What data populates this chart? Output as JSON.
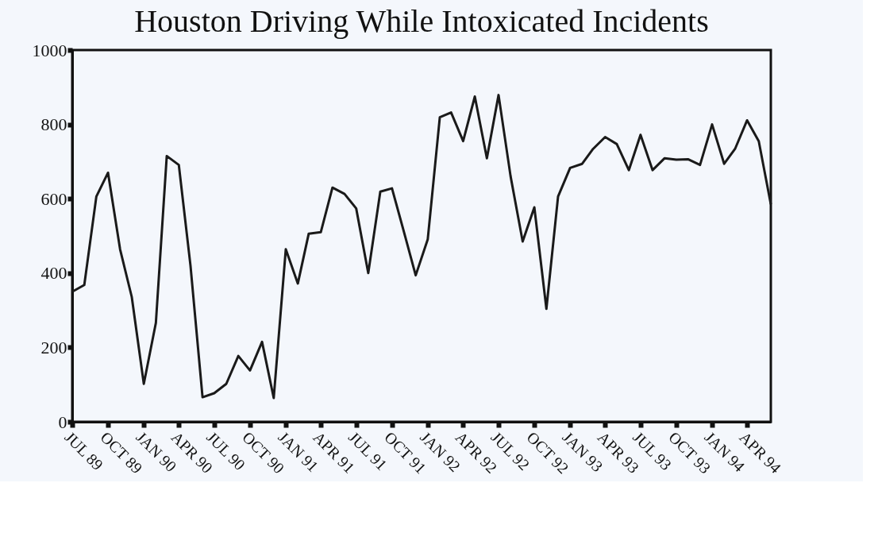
{
  "chart_data": {
    "type": "line",
    "title": "Houston Driving While Intoxicated Incidents",
    "x": [
      "1989-07",
      "1989-08",
      "1989-09",
      "1989-10",
      "1989-11",
      "1989-12",
      "1990-01",
      "1990-02",
      "1990-03",
      "1990-04",
      "1990-05",
      "1990-06",
      "1990-07",
      "1990-08",
      "1990-09",
      "1990-10",
      "1990-11",
      "1990-12",
      "1991-01",
      "1991-02",
      "1991-03",
      "1991-04",
      "1991-05",
      "1991-06",
      "1991-07",
      "1991-08",
      "1991-09",
      "1991-10",
      "1991-11",
      "1991-12",
      "1992-01",
      "1992-02",
      "1992-03",
      "1992-04",
      "1992-05",
      "1992-06",
      "1992-07",
      "1992-08",
      "1992-09",
      "1992-10",
      "1992-11",
      "1992-12",
      "1993-01",
      "1993-02",
      "1993-03",
      "1993-04",
      "1993-05",
      "1993-06",
      "1993-07",
      "1993-08",
      "1993-09",
      "1993-10",
      "1993-11",
      "1993-12",
      "1994-01",
      "1994-02",
      "1994-03",
      "1994-04",
      "1994-05",
      "1994-06"
    ],
    "series": [
      {
        "color": "#1a1a1a",
        "values": [
          350,
          368,
          606,
          670,
          464,
          336,
          102,
          266,
          715,
          691,
          420,
          66,
          77,
          102,
          177,
          138,
          215,
          64,
          464,
          372,
          506,
          510,
          630,
          613,
          574,
          400,
          619,
          628,
          510,
          394,
          491,
          819,
          832,
          755,
          875,
          709,
          879,
          660,
          485,
          577,
          304,
          606,
          683,
          694,
          734,
          766,
          747,
          677,
          772,
          677,
          709,
          705,
          706,
          691,
          800,
          694,
          734,
          811,
          755,
          585
        ]
      }
    ],
    "xlim": [
      "1989-07",
      "1994-06"
    ],
    "xticks": [
      {
        "value": "1989-07",
        "label": "JUL 89"
      },
      {
        "value": "1989-10",
        "label": "OCT 89"
      },
      {
        "value": "1990-01",
        "label": "JAN 90"
      },
      {
        "value": "1990-04",
        "label": "APR 90"
      },
      {
        "value": "1990-07",
        "label": "JUL 90"
      },
      {
        "value": "1990-10",
        "label": "OCT 90"
      },
      {
        "value": "1991-01",
        "label": "JAN 91"
      },
      {
        "value": "1991-04",
        "label": "APR 91"
      },
      {
        "value": "1991-07",
        "label": "JUL 91"
      },
      {
        "value": "1991-10",
        "label": "OCT 91"
      },
      {
        "value": "1992-01",
        "label": "JAN 92"
      },
      {
        "value": "1992-04",
        "label": "APR 92"
      },
      {
        "value": "1992-07",
        "label": "JUL 92"
      },
      {
        "value": "1992-10",
        "label": "OCT 92"
      },
      {
        "value": "1993-01",
        "label": "JAN 93"
      },
      {
        "value": "1993-04",
        "label": "APR 93"
      },
      {
        "value": "1993-07",
        "label": "JUL 93"
      },
      {
        "value": "1993-10",
        "label": "OCT 93"
      },
      {
        "value": "1994-01",
        "label": "JAN 94"
      },
      {
        "value": "1994-04",
        "label": "APR 94"
      }
    ],
    "ylim": [
      0,
      1000
    ],
    "yticks": [
      0,
      200,
      400,
      600,
      800,
      1000
    ],
    "grid": false,
    "marker": "none",
    "line_style": "solid"
  }
}
